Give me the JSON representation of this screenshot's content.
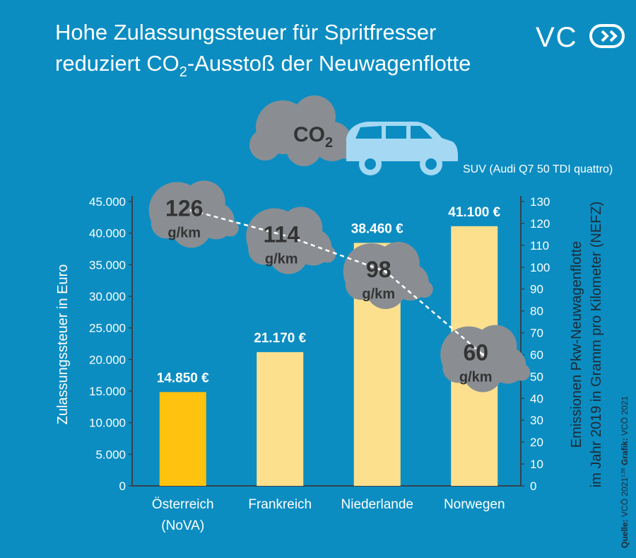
{
  "chart_data": {
    "type": "bar",
    "title": {
      "line1": "Hohe Zulassungssteuer für Spritfresser",
      "line2_before": "reduziert CO",
      "line2_sub": "2",
      "line2_after": "-Ausstoß der Neuwagenflotte"
    },
    "logo": "VC",
    "cloud_label": {
      "text": "CO",
      "sub": "2"
    },
    "car_label": "SUV (Audi Q7 50 TDI quattro)",
    "categories": [
      "Österreich",
      "Frankreich",
      "Niederlande",
      "Norwegen"
    ],
    "category_note": "(NoVA)",
    "ylabel": "Zulassungssteuer in Euro",
    "y2label": [
      "Emissionen Pkw-Neuwagenflotte",
      "im Jahr 2019 in Gramm pro Kilometer (NEFZ)"
    ],
    "ylim": [
      0,
      45000
    ],
    "yticks": [
      0,
      {
        "value": 5000,
        "label": "5.000"
      },
      {
        "value": 10000,
        "label": "10.000"
      },
      {
        "value": 15000,
        "label": "15.000"
      },
      {
        "value": 20000,
        "label": "20.000"
      },
      {
        "value": 25000,
        "label": "25.000"
      },
      {
        "value": 30000,
        "label": "30.000"
      },
      {
        "value": 35000,
        "label": "35.000"
      },
      {
        "value": 40000,
        "label": "40.000"
      },
      {
        "value": 45000,
        "label": "45.000"
      }
    ],
    "y2lim": [
      0,
      130
    ],
    "y2ticks": [
      0,
      10,
      20,
      30,
      40,
      50,
      60,
      70,
      80,
      90,
      100,
      110,
      120,
      130
    ],
    "series": [
      {
        "name": "Zulassungssteuer",
        "colors": [
          "#ffc20e",
          "#fde08e",
          "#fde08e",
          "#fde08e"
        ],
        "values": [
          14850,
          21170,
          38460,
          41100
        ],
        "value_labels": [
          "14.850 €",
          "21.170 €",
          "38.460 €",
          "41.100 €"
        ]
      },
      {
        "name": "Emissionen",
        "type": "line",
        "axis": "y2",
        "color": "#ffffff",
        "unit": "g/km",
        "values": [
          126,
          114,
          98,
          60
        ]
      }
    ],
    "source": {
      "label1": "Quelle:",
      "text1": " VCÖ 2021",
      "sup": "1,56",
      "label2": " Grafik:",
      "text2": " VCÖ 2021"
    }
  }
}
